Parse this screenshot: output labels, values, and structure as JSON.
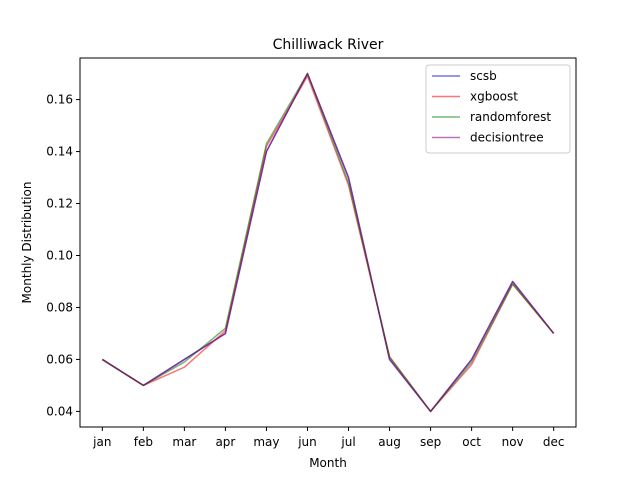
{
  "chart_data": {
    "type": "line",
    "title": "Chilliwack River",
    "xlabel": "Month",
    "ylabel": "Monthly Distribution",
    "categories": [
      "jan",
      "feb",
      "mar",
      "apr",
      "may",
      "jun",
      "jul",
      "aug",
      "sep",
      "oct",
      "nov",
      "dec"
    ],
    "ylim": [
      0.034,
      0.176
    ],
    "yticks": [
      0.04,
      0.06,
      0.08,
      0.1,
      0.12,
      0.14,
      0.16
    ],
    "ytick_labels": [
      "0.04",
      "0.06",
      "0.08",
      "0.10",
      "0.12",
      "0.14",
      "0.16"
    ],
    "grid": false,
    "legend_position": "top-right",
    "series": [
      {
        "name": "scsb",
        "color": "#0000cc",
        "values": [
          0.06,
          0.05,
          0.06,
          0.07,
          0.14,
          0.17,
          0.13,
          0.06,
          0.04,
          0.06,
          0.09,
          0.07
        ]
      },
      {
        "name": "xgboost",
        "color": "#ff0000",
        "values": [
          0.06,
          0.05,
          0.057,
          0.071,
          0.142,
          0.169,
          0.127,
          0.061,
          0.04,
          0.058,
          0.089,
          0.07
        ]
      },
      {
        "name": "randomforest",
        "color": "#008000",
        "values": [
          0.06,
          0.05,
          0.059,
          0.072,
          0.143,
          0.17,
          0.128,
          0.061,
          0.04,
          0.059,
          0.089,
          0.07
        ]
      },
      {
        "name": "decisiontree",
        "color": "#800080",
        "values": [
          0.06,
          0.05,
          0.06,
          0.07,
          0.14,
          0.17,
          0.13,
          0.06,
          0.04,
          0.06,
          0.09,
          0.07
        ]
      }
    ]
  }
}
